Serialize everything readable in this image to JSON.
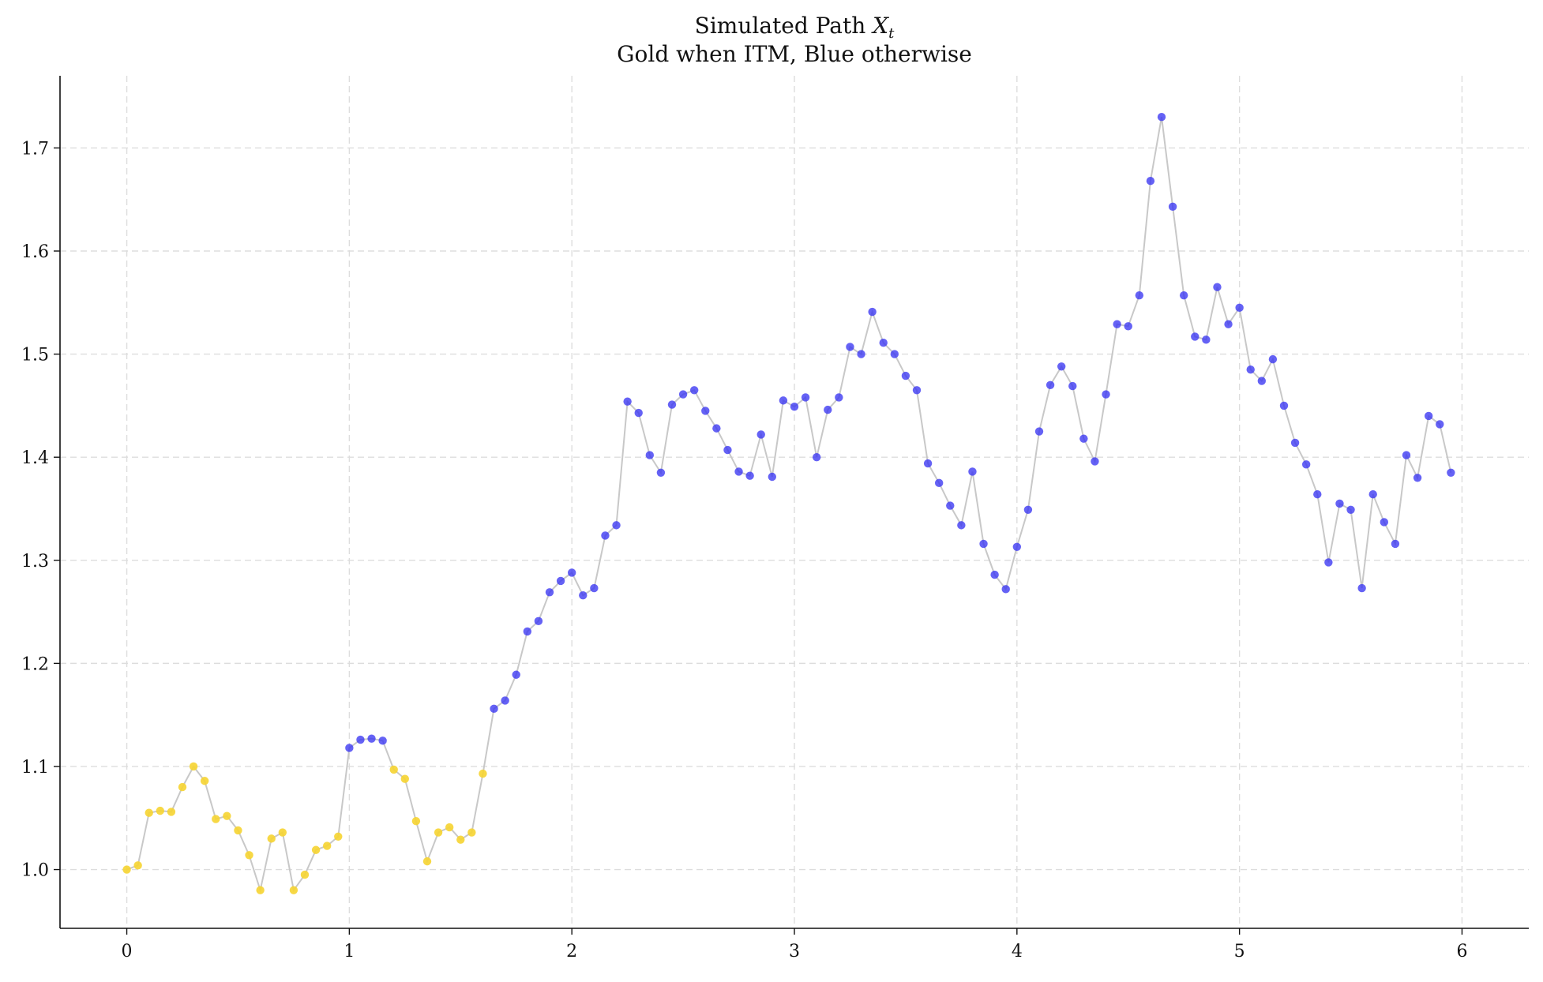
{
  "chart_data": {
    "type": "scatter",
    "title": "Simulated Path X_t",
    "title_prefix": "Simulated Path ",
    "title_var": "X",
    "title_sub": "t",
    "subtitle": "Gold when ITM, Blue otherwise",
    "xlabel": "",
    "ylabel": "",
    "xlim": [
      -0.3,
      6.3
    ],
    "ylim": [
      0.943,
      1.77
    ],
    "xticks": [
      0,
      1,
      2,
      3,
      4,
      5,
      6
    ],
    "xtick_labels": [
      "0",
      "1",
      "2",
      "3",
      "4",
      "5",
      "6"
    ],
    "yticks": [
      1.0,
      1.1,
      1.2,
      1.3,
      1.4,
      1.5,
      1.6,
      1.7
    ],
    "ytick_labels": [
      "1.0",
      "1.1",
      "1.2",
      "1.3",
      "1.4",
      "1.5",
      "1.6",
      "1.7"
    ],
    "grid": true,
    "colors": {
      "itm": "#f6d431",
      "otm": "#3a36f2",
      "path_line": "#c8c8c8",
      "grid": "#dddddd",
      "axis": "#111111"
    },
    "x_step": 0.05,
    "values": [
      1.0,
      1.004,
      1.055,
      1.057,
      1.056,
      1.08,
      1.1,
      1.086,
      1.049,
      1.052,
      1.038,
      1.014,
      0.98,
      1.03,
      1.036,
      0.98,
      0.995,
      1.019,
      1.023,
      1.032,
      1.118,
      1.126,
      1.127,
      1.125,
      1.097,
      1.088,
      1.047,
      1.008,
      1.036,
      1.041,
      1.029,
      1.036,
      1.093,
      1.156,
      1.164,
      1.189,
      1.231,
      1.241,
      1.269,
      1.28,
      1.288,
      1.266,
      1.273,
      1.324,
      1.334,
      1.454,
      1.443,
      1.402,
      1.385,
      1.451,
      1.461,
      1.465,
      1.445,
      1.428,
      1.407,
      1.386,
      1.382,
      1.422,
      1.381,
      1.455,
      1.449,
      1.458,
      1.4,
      1.446,
      1.458,
      1.507,
      1.5,
      1.541,
      1.511,
      1.5,
      1.479,
      1.465,
      1.394,
      1.375,
      1.353,
      1.334,
      1.386,
      1.316,
      1.286,
      1.272,
      1.313,
      1.349,
      1.425,
      1.47,
      1.488,
      1.469,
      1.418,
      1.396,
      1.461,
      1.529,
      1.527,
      1.557,
      1.668,
      1.73,
      1.643,
      1.557,
      1.517,
      1.514,
      1.565,
      1.529,
      1.545,
      1.485,
      1.474,
      1.495,
      1.45,
      1.414,
      1.393,
      1.364,
      1.298,
      1.355,
      1.349,
      1.273,
      1.364,
      1.337,
      1.316,
      1.402,
      1.38,
      1.44,
      1.432,
      1.385
    ],
    "itm_flags": [
      true,
      true,
      true,
      true,
      true,
      true,
      true,
      true,
      true,
      true,
      true,
      true,
      true,
      true,
      true,
      true,
      true,
      true,
      true,
      true,
      false,
      false,
      false,
      false,
      true,
      true,
      true,
      true,
      true,
      true,
      true,
      true,
      true,
      false,
      false,
      false,
      false,
      false,
      false,
      false,
      false,
      false,
      false,
      false,
      false,
      false,
      false,
      false,
      false,
      false,
      false,
      false,
      false,
      false,
      false,
      false,
      false,
      false,
      false,
      false,
      false,
      false,
      false,
      false,
      false,
      false,
      false,
      false,
      false,
      false,
      false,
      false,
      false,
      false,
      false,
      false,
      false,
      false,
      false,
      false,
      false,
      false,
      false,
      false,
      false,
      false,
      false,
      false,
      false,
      false,
      false,
      false,
      false,
      false,
      false,
      false,
      false,
      false,
      false,
      false,
      false,
      false,
      false,
      false,
      false,
      false,
      false,
      false,
      false,
      false,
      false,
      false,
      false,
      false,
      false,
      false,
      false,
      false,
      false,
      false
    ]
  }
}
